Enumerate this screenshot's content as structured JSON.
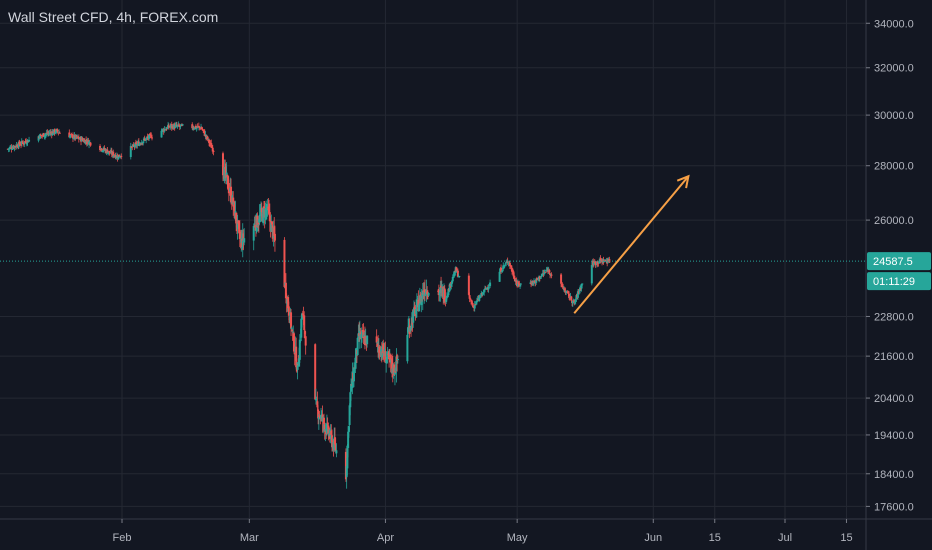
{
  "header": {
    "title": "Wall Street CFD, 4h, FOREX.com"
  },
  "colors": {
    "background": "#131722",
    "grid": "#242833",
    "up": "#26a69a",
    "down": "#ef5350",
    "arrow": "#f7a046",
    "last_price": "#26a69a"
  },
  "chart_data": {
    "type": "candlestick",
    "title": "Wall Street CFD, 4h, FOREX.com",
    "x_tick_labels": [
      "Feb",
      "Mar",
      "Apr",
      "May",
      "Jun",
      "15",
      "Jul",
      "15"
    ],
    "y_tick_labels": [
      "17600.0",
      "18400.0",
      "19400.0",
      "20400.0",
      "21600.0",
      "22800.0",
      "26000.0",
      "28000.0",
      "30000.0",
      "32000.0",
      "34000.0"
    ],
    "y_axis_scale": "log",
    "ylim": [
      17300,
      35000
    ],
    "last_price": {
      "value": 24587.5,
      "label": "24587.5",
      "countdown": "01:11:29"
    },
    "series": [
      {
        "date": "2020-01-06",
        "close": 28650
      },
      {
        "date": "2020-01-13",
        "close": 29150
      },
      {
        "date": "2020-01-17",
        "close": 29350
      },
      {
        "date": "2020-01-24",
        "close": 28950
      },
      {
        "date": "2020-01-31",
        "close": 28350
      },
      {
        "date": "2020-02-07",
        "close": 29100
      },
      {
        "date": "2020-02-12",
        "close": 29550
      },
      {
        "date": "2020-02-19",
        "close": 29500
      },
      {
        "date": "2020-02-24",
        "close": 27900
      },
      {
        "date": "2020-02-26",
        "close": 26800
      },
      {
        "date": "2020-02-28",
        "close": 25200
      },
      {
        "date": "2020-03-03",
        "close": 26000
      },
      {
        "date": "2020-03-05",
        "close": 26400
      },
      {
        "date": "2020-03-09",
        "close": 23900
      },
      {
        "date": "2020-03-12",
        "close": 21200
      },
      {
        "date": "2020-03-13",
        "close": 22900
      },
      {
        "date": "2020-03-16",
        "close": 20200
      },
      {
        "date": "2020-03-20",
        "close": 19200
      },
      {
        "date": "2020-03-23",
        "close": 18400
      },
      {
        "date": "2020-03-24",
        "close": 20500
      },
      {
        "date": "2020-03-26",
        "close": 22200
      },
      {
        "date": "2020-03-31",
        "close": 21800
      },
      {
        "date": "2020-04-03",
        "close": 21200
      },
      {
        "date": "2020-04-07",
        "close": 22700
      },
      {
        "date": "2020-04-10",
        "close": 23700
      },
      {
        "date": "2020-04-15",
        "close": 23500
      },
      {
        "date": "2020-04-17",
        "close": 24300
      },
      {
        "date": "2020-04-21",
        "close": 23100
      },
      {
        "date": "2020-04-24",
        "close": 23700
      },
      {
        "date": "2020-04-29",
        "close": 24600
      },
      {
        "date": "2020-05-01",
        "close": 23800
      },
      {
        "date": "2020-05-05",
        "close": 23900
      },
      {
        "date": "2020-05-08",
        "close": 24300
      },
      {
        "date": "2020-05-12",
        "close": 23600
      },
      {
        "date": "2020-05-14",
        "close": 23200
      },
      {
        "date": "2020-05-15",
        "close": 23600
      },
      {
        "date": "2020-05-18",
        "close": 24500
      },
      {
        "date": "2020-05-20",
        "close": 24600
      },
      {
        "date": "2020-05-22",
        "close": 24587.5
      }
    ],
    "annotation_arrow": {
      "from": {
        "date": "2020-05-14",
        "price": 22900
      },
      "to": {
        "date": "2020-06-09",
        "price": 27600
      }
    }
  }
}
